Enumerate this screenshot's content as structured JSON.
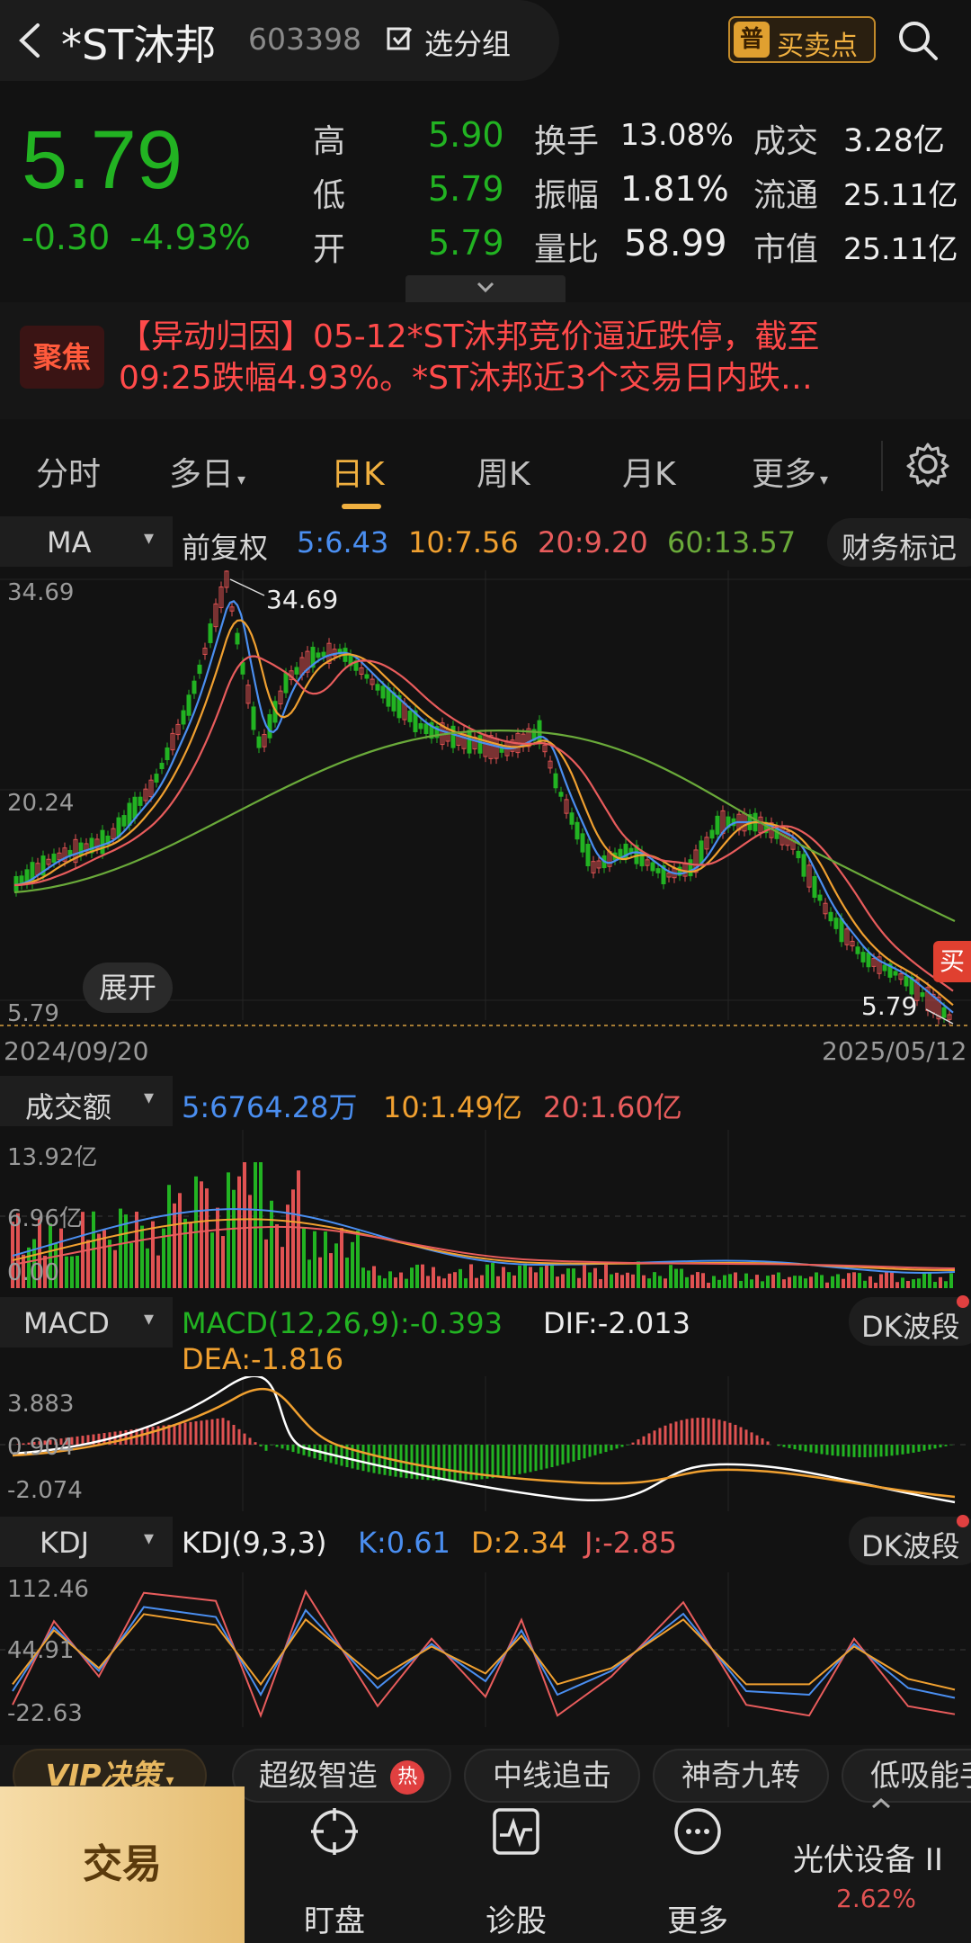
{
  "header": {
    "title": "*ST沐邦",
    "code": "603398",
    "group_label": "选分组",
    "bs_icon": "普",
    "bs_label": "买卖点"
  },
  "quote": {
    "price": "5.79",
    "change": "-0.30",
    "change_pct": "-4.93%",
    "rows": [
      {
        "l1": "高",
        "v1": "5.90",
        "l2": "换手",
        "v2": "13.08%",
        "l3": "成交",
        "v3": "3.28亿"
      },
      {
        "l1": "低",
        "v1": "5.79",
        "l2": "振幅",
        "v2": "1.81%",
        "l3": "流通",
        "v3": "25.11亿"
      },
      {
        "l1": "开",
        "v1": "5.79",
        "l2": "量比",
        "v2": "58.99",
        "l3": "市值",
        "v3": "25.11亿"
      }
    ]
  },
  "news": {
    "badge": "聚焦",
    "line1": "【异动归因】05-12*ST沐邦竞价逼近跌停，截至",
    "line2": "09:25跌幅4.93%。*ST沐邦近3个交易日内跌…"
  },
  "tabs": [
    "分时",
    "多日",
    "日K",
    "周K",
    "月K",
    "更多"
  ],
  "ma_bar": {
    "indicator": "MA",
    "adjust": "前复权",
    "ma5": "5:6.43",
    "ma10": "10:7.56",
    "ma20": "20:9.20",
    "ma60": "60:13.57",
    "finance_mark": "财务标记"
  },
  "kline": {
    "y_top": "34.69",
    "y_mid": "20.24",
    "y_bottom": "5.79",
    "high_label": "34.69",
    "low_label": "5.79",
    "date_start": "2024/09/20",
    "date_end": "2025/05/12",
    "expand": "展开",
    "buy_tag": "买"
  },
  "volume": {
    "label": "成交额",
    "v5": "5:6764.28万",
    "v10": "10:1.49亿",
    "v20": "20:1.60亿",
    "y_top": "13.92亿",
    "y_mid": "6.96亿",
    "y_bottom": "0.00"
  },
  "macd": {
    "label": "MACD",
    "params": "MACD(12,26,9):-0.393",
    "dif": "DIF:-2.013",
    "dea": "DEA:-1.816",
    "wave": "DK波段",
    "y_top": "3.883",
    "y_mid": "0.904",
    "y_bottom": "-2.074"
  },
  "kdj": {
    "label": "KDJ",
    "params": "KDJ(9,3,3)",
    "k": "K:0.61",
    "d": "D:2.34",
    "j": "J:-2.85",
    "wave": "DK波段",
    "y_top": "112.46",
    "y_mid": "44.91",
    "y_bottom": "-22.63"
  },
  "strategies": {
    "vip": "VIP决策",
    "items": [
      "超级智造",
      "中线追击",
      "神奇九转",
      "低吸能手"
    ],
    "hot": "热"
  },
  "bottom_nav": {
    "trade": "交易",
    "watch": "盯盘",
    "diagnose": "诊股",
    "more": "更多",
    "sector": "光伏设备 II",
    "sector_pct": "2.62%"
  },
  "colors": {
    "up": "#e05252",
    "down": "#22b322",
    "ma5": "#4a8ef0",
    "ma10": "#f0a030",
    "ma20": "#e85c5c",
    "ma60": "#6aaa3a",
    "accent": "#f0b040"
  }
}
